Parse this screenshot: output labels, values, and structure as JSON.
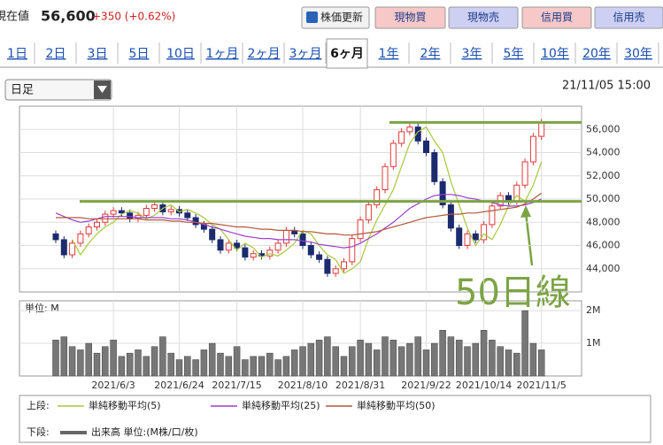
{
  "header": {
    "label": "現在値",
    "price": "56,600",
    "change": "+350 (+0.62%)",
    "buttons": [
      "株価更新",
      "現物買",
      "現物売",
      "信用買",
      "信用売"
    ]
  },
  "tabs": [
    "1日",
    "2日",
    "3日",
    "5日",
    "10日",
    "1ヶ月",
    "2ヶ月",
    "3ヶ月",
    "6ヶ月",
    "1年",
    "2年",
    "3年",
    "5年",
    "10年",
    "20年",
    "30年"
  ],
  "tab_selected_index": 8,
  "dropdown": "日足",
  "timestamp": "21/11/05 15:00",
  "chart_data": {
    "type": "candlestick",
    "categories": [
      null,
      null,
      null,
      null,
      null,
      null,
      null,
      "2021/6/3",
      null,
      null,
      null,
      null,
      null,
      null,
      null,
      "2021/6/24",
      null,
      null,
      null,
      null,
      null,
      null,
      "2021/7/15",
      null,
      null,
      null,
      null,
      null,
      null,
      null,
      "2021/8/10",
      null,
      null,
      null,
      null,
      null,
      null,
      "2021/8/31",
      null,
      null,
      null,
      null,
      null,
      null,
      null,
      "2021/9/22",
      null,
      null,
      null,
      null,
      null,
      null,
      "2021/10/14",
      null,
      null,
      null,
      null,
      null,
      null,
      "2021/11/5"
    ],
    "open": [
      47000,
      46500,
      45200,
      46200,
      47000,
      47600,
      48000,
      48700,
      49000,
      48800,
      48300,
      48600,
      49200,
      49500,
      48900,
      49100,
      48800,
      48400,
      47800,
      47400,
      46500,
      45600,
      46200,
      45800,
      45000,
      45300,
      45100,
      45600,
      46200,
      47300,
      47000,
      46000,
      45200,
      44800,
      43600,
      44000,
      44600,
      46600,
      48200,
      49500,
      50800,
      52800,
      54800,
      55800,
      56200,
      55000,
      54000,
      51500,
      49500,
      47500,
      46000,
      47000,
      46500,
      47800,
      49400,
      50300,
      49800,
      51200,
      53200,
      55400
    ],
    "high": [
      47300,
      46800,
      46500,
      47300,
      47900,
      48300,
      49000,
      49300,
      49300,
      49100,
      48900,
      49500,
      49800,
      49800,
      49400,
      49400,
      49100,
      48700,
      48100,
      47700,
      46800,
      46500,
      46500,
      46100,
      45600,
      45600,
      45900,
      46500,
      47600,
      47600,
      47300,
      46300,
      45500,
      45100,
      44300,
      44900,
      46900,
      48500,
      49800,
      51100,
      53100,
      55100,
      56100,
      56500,
      56500,
      55300,
      54300,
      51800,
      49800,
      47800,
      47300,
      47300,
      48100,
      49700,
      50600,
      50600,
      51500,
      53500,
      55700,
      56900
    ],
    "low": [
      46200,
      44900,
      44900,
      45900,
      46700,
      47300,
      47700,
      48400,
      48500,
      48000,
      48000,
      48300,
      48900,
      48600,
      48600,
      48500,
      48100,
      47500,
      47100,
      46200,
      45300,
      45300,
      45500,
      44700,
      44700,
      44800,
      44800,
      45300,
      45900,
      46700,
      45700,
      44900,
      44500,
      43300,
      43300,
      43700,
      44300,
      46300,
      47900,
      49200,
      50500,
      52500,
      54500,
      55500,
      54700,
      53700,
      51200,
      49200,
      47200,
      45700,
      45700,
      46200,
      46200,
      47500,
      49100,
      49500,
      49500,
      50900,
      52900,
      55100
    ],
    "close": [
      46500,
      45200,
      46200,
      47000,
      47600,
      48000,
      48700,
      49000,
      48800,
      48300,
      48600,
      49200,
      49500,
      48900,
      49100,
      48800,
      48400,
      47800,
      47400,
      46500,
      45600,
      46200,
      45800,
      45000,
      45300,
      45100,
      45600,
      46200,
      47300,
      47000,
      46000,
      45200,
      44800,
      43600,
      44000,
      44600,
      46600,
      48200,
      49500,
      50800,
      52800,
      54800,
      55800,
      56200,
      55000,
      54000,
      51500,
      49500,
      47500,
      46000,
      47000,
      46500,
      47800,
      49400,
      50300,
      49800,
      51200,
      53200,
      55400,
      56600
    ],
    "up_color": "#e03a3a",
    "down_color": "#1c2a6e",
    "series": [
      {
        "name": "単純移動平均(5)",
        "color": "#a6c93a",
        "values": [
          null,
          null,
          46500,
          45200,
          46200,
          47000,
          47600,
          48000,
          48700,
          49000,
          48800,
          48300,
          48600,
          49200,
          49500,
          48900,
          49100,
          48800,
          48400,
          47800,
          47400,
          46500,
          45600,
          46200,
          45800,
          45000,
          45300,
          45100,
          45600,
          46200,
          47300,
          47000,
          46000,
          45200,
          44800,
          43600,
          44000,
          44600,
          46600,
          48200,
          49500,
          50800,
          52800,
          54800,
          55800,
          56200,
          55000,
          54000,
          51500,
          49500,
          47500,
          46000,
          47000,
          46500,
          47800,
          49400,
          50300,
          49800,
          51200,
          53200
        ]
      },
      {
        "name": "単純移動平均(25)",
        "color": "#9b3fcf",
        "values": [
          48800,
          48500,
          48200,
          48000,
          48100,
          48300,
          48500,
          48500,
          48500,
          48500,
          48400,
          48400,
          48400,
          48400,
          48300,
          48300,
          48200,
          48000,
          47800,
          47600,
          47400,
          47200,
          47000,
          46800,
          46700,
          46600,
          46600,
          46500,
          46500,
          46500,
          46400,
          46300,
          46100,
          46000,
          45900,
          45800,
          45900,
          46200,
          46600,
          47000,
          47500,
          48000,
          48600,
          49200,
          49600,
          50000,
          50300,
          50400,
          50400,
          50300,
          50100,
          50000,
          49800,
          49700,
          49500,
          49400,
          49400,
          49500,
          49700,
          50000
        ]
      },
      {
        "name": "単純移動平均(50)",
        "color": "#b4583a",
        "values": [
          48400,
          48400,
          48400,
          48400,
          48300,
          48300,
          48300,
          48300,
          48300,
          48300,
          48300,
          48200,
          48200,
          48200,
          48100,
          48100,
          48000,
          48000,
          47900,
          47900,
          47800,
          47700,
          47600,
          47600,
          47500,
          47400,
          47400,
          47300,
          47300,
          47300,
          47200,
          47200,
          47100,
          47000,
          47000,
          46900,
          46900,
          47000,
          47100,
          47200,
          47400,
          47600,
          47800,
          48000,
          48200,
          48400,
          48500,
          48600,
          48700,
          48700,
          48800,
          48800,
          48900,
          49000,
          49100,
          49200,
          49300,
          49600,
          50000,
          50500
        ]
      }
    ],
    "ylim": [
      42000,
      58000
    ],
    "yticks": [
      {
        "value": 44000,
        "label": "44,000"
      },
      {
        "value": 46000,
        "label": "46,000"
      },
      {
        "value": 48000,
        "label": "48,000"
      },
      {
        "value": 50000,
        "label": "50,000"
      },
      {
        "value": 52000,
        "label": "52,000"
      },
      {
        "value": 54000,
        "label": "54,000"
      },
      {
        "value": 56000,
        "label": "56,000"
      }
    ],
    "grid": true,
    "hlines": [
      56600,
      49800
    ],
    "hline_color": "#7ca444",
    "annotation": "50日線",
    "volume": {
      "unit_label": "単位: M",
      "color": "#777777",
      "values": [
        1.1,
        1.2,
        0.9,
        0.8,
        1.0,
        0.7,
        0.9,
        1.1,
        0.6,
        0.7,
        0.8,
        0.6,
        0.9,
        1.2,
        0.7,
        0.5,
        0.6,
        0.5,
        0.8,
        1.0,
        0.7,
        0.6,
        0.9,
        0.5,
        0.6,
        0.6,
        0.7,
        0.5,
        0.6,
        0.8,
        0.9,
        1.0,
        1.1,
        1.2,
        0.9,
        0.6,
        0.9,
        1.1,
        1.0,
        0.8,
        1.2,
        1.1,
        0.9,
        1.0,
        1.2,
        0.8,
        1.0,
        1.4,
        1.2,
        1.1,
        0.9,
        1.0,
        1.4,
        1.1,
        0.9,
        0.8,
        0.7,
        2.0,
        1.0,
        0.8
      ],
      "ylim": [
        0,
        2.3
      ],
      "yticks": [
        {
          "value": 1,
          "label": "1M"
        },
        {
          "value": 2,
          "label": "2M"
        }
      ]
    }
  },
  "legend": {
    "upper_label": "上段:",
    "lower_label": "下段:",
    "volume_label": "出来高 単位:(M株/口/枚)"
  }
}
